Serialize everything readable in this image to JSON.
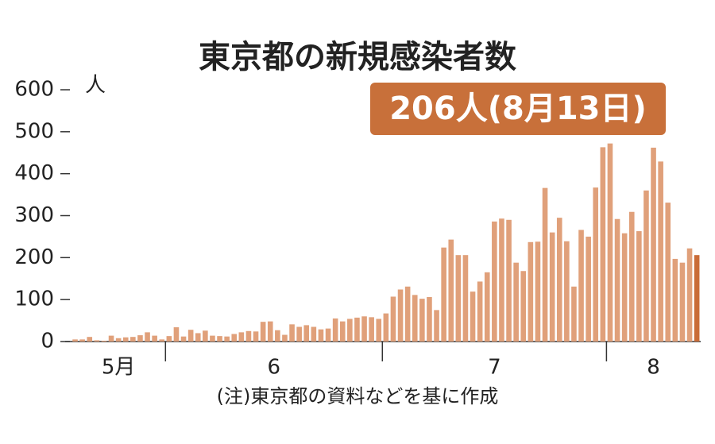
{
  "chart_data": {
    "type": "bar",
    "title": "東京都の新規感染者数",
    "y_unit": "人",
    "annotation": "206人(8月13日)",
    "note": "(注)東京都の資料などを基に作成",
    "color": "#e0a07a",
    "highlight_color": "#c96c38",
    "ylim": [
      0,
      600
    ],
    "yticks": [
      0,
      100,
      200,
      300,
      400,
      500,
      600
    ],
    "months": [
      {
        "label": "5月",
        "values": [
          5,
          5,
          11,
          3,
          2,
          14,
          8,
          10,
          11,
          15,
          22,
          14,
          5
        ]
      },
      {
        "label": "6",
        "values": [
          13,
          34,
          12,
          28,
          20,
          26,
          14,
          13,
          12,
          18,
          22,
          25,
          24,
          47,
          48,
          27,
          16,
          41,
          35,
          39,
          35,
          29,
          31,
          55,
          48,
          54,
          57,
          60,
          58,
          54
        ]
      },
      {
        "label": "7",
        "values": [
          67,
          107,
          124,
          131,
          111,
          102,
          106,
          75,
          224,
          243,
          206,
          206,
          119,
          143,
          165,
          286,
          293,
          290,
          188,
          168,
          237,
          238,
          366,
          260,
          295,
          239,
          131,
          266,
          250,
          367,
          463
        ]
      },
      {
        "label": "8",
        "values": [
          472,
          292,
          258,
          309,
          263,
          360,
          462,
          429,
          331,
          197,
          188,
          222,
          206
        ]
      }
    ]
  }
}
